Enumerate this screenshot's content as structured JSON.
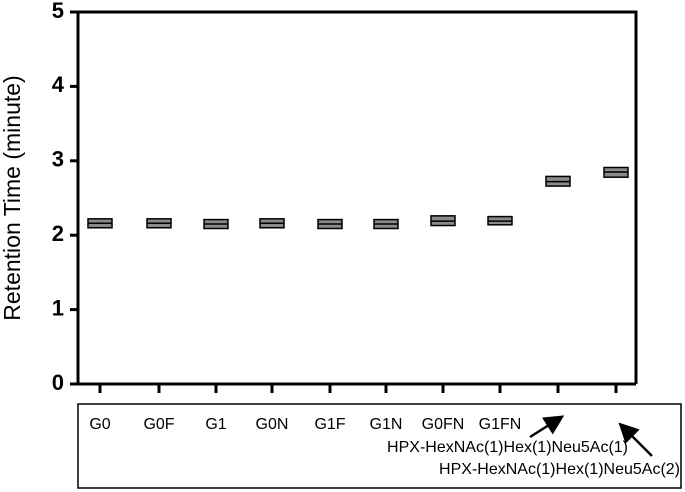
{
  "chart_data": {
    "type": "box",
    "y_label": "Retention Time (minute)",
    "categories": [
      "G0",
      "G0F",
      "G1",
      "G0N",
      "G1F",
      "G1N",
      "G0FN",
      "G1FN",
      "HPX-HexNAc(1)Hex(1)Neu5Ac(1)",
      "HPX-HexNAc(1)Hex(1)Neu5Ac(2)"
    ],
    "q1": [
      2.1,
      2.1,
      2.09,
      2.1,
      2.09,
      2.09,
      2.13,
      2.14,
      2.66,
      2.78
    ],
    "median": [
      2.16,
      2.16,
      2.15,
      2.16,
      2.15,
      2.15,
      2.19,
      2.19,
      2.72,
      2.85
    ],
    "q3": [
      2.22,
      2.22,
      2.21,
      2.22,
      2.21,
      2.21,
      2.26,
      2.25,
      2.79,
      2.91
    ],
    "color": "#8a8a8a",
    "ylim": [
      0,
      5
    ],
    "yticks": [
      0,
      1,
      2,
      3,
      4,
      5
    ]
  }
}
